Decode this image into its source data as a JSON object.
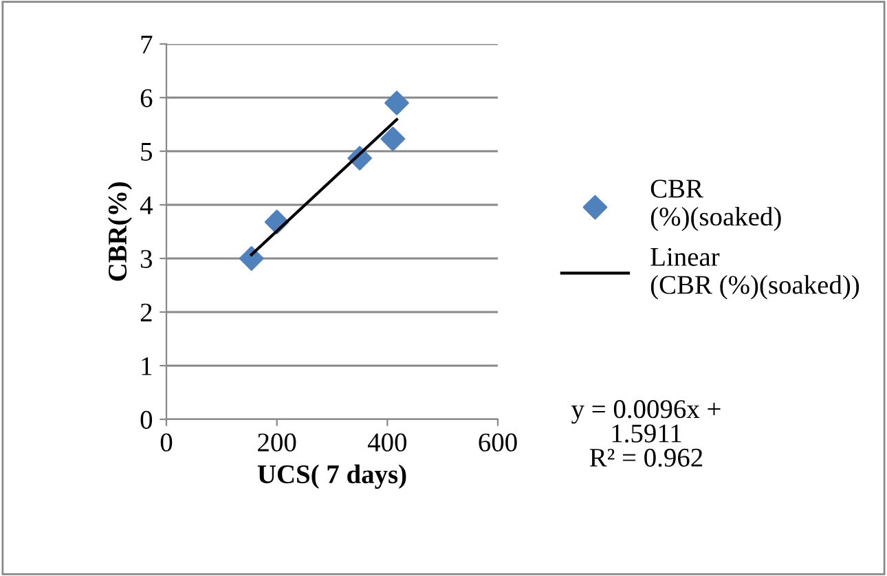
{
  "chart_data": {
    "type": "scatter",
    "xlabel": "UCS( 7 days)",
    "ylabel": "CBR(%)",
    "series": [
      {
        "name": "CBR (%)(soaked)",
        "color": "#4f81bd",
        "x": [
          154,
          200,
          350,
          410,
          417
        ],
        "values": [
          3.0,
          3.68,
          4.87,
          5.23,
          5.9
        ],
        "marker": "diamond"
      },
      {
        "name": "Linear (CBR (%)(soaked))",
        "type": "line",
        "color": "#000000",
        "x": [
          154,
          417
        ],
        "values": [
          3.07,
          5.59
        ],
        "marker": "none"
      }
    ],
    "annotations": [
      "y = 0.0096x +\n1.5911\nR² = 0.962"
    ],
    "xlim": [
      0,
      600
    ],
    "xticks": [
      0,
      200,
      400,
      600
    ],
    "ylim": [
      0,
      7
    ],
    "yticks": [
      0,
      1,
      2,
      3,
      4,
      5,
      6,
      7
    ],
    "grid": "y",
    "legend": "right"
  }
}
